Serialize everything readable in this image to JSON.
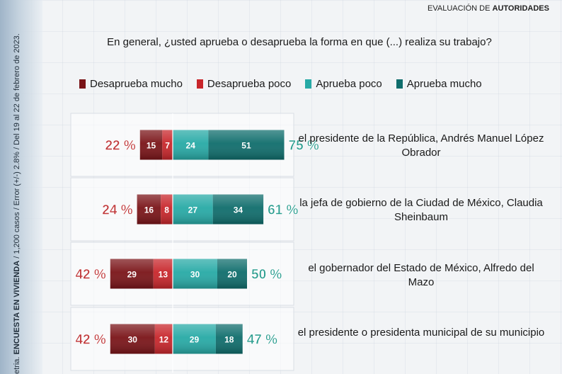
{
  "header": {
    "section_prefix": "EVALUACIÓN DE ",
    "section_strong": "AUTORIDADES"
  },
  "side_note": {
    "prefix": "etria. ",
    "strong": "ENCUESTA EN VIVIENDA",
    "rest": " / 1,200 casos / Error (+/-) 2.8% / Del 19 al 22 de febrero de 2023."
  },
  "question": "En general, ¿usted aprueba o desaprueba la forma en que (...) realiza su trabajo?",
  "colors": {
    "desaprueba_mucho": "#7a1418",
    "desaprueba_poco": "#c8262b",
    "aprueba_poco": "#27aaa6",
    "aprueba_mucho": "#0f6d6c",
    "disapprove_total": "#c0393b",
    "approve_total": "#2a9d8f"
  },
  "chart_data": {
    "type": "bar",
    "orientation": "horizontal-diverging",
    "series": [
      {
        "name": "Desaprueba mucho",
        "values": [
          15,
          16,
          29,
          30
        ]
      },
      {
        "name": "Desaprueba poco",
        "values": [
          7,
          8,
          13,
          12
        ]
      },
      {
        "name": "Aprueba poco",
        "values": [
          24,
          27,
          30,
          29
        ]
      },
      {
        "name": "Aprueba mucho",
        "values": [
          51,
          34,
          20,
          18
        ]
      }
    ],
    "categories": [
      "el presidente de la República, Andrés Manuel López Obrador",
      "la jefa de gobierno de la Ciudad de México, Claudia Sheinbaum",
      "el gobernador del Estado de México, Alfredo del Mazo",
      "el presidente o presidenta municipal de su municipio"
    ],
    "disapprove_totals": [
      "22 %",
      "24 %",
      "42 %",
      "42 %"
    ],
    "approve_totals": [
      "75 %",
      "61 %",
      "50 %",
      "47 %"
    ],
    "legend": [
      "Desaprueba mucho",
      "Desaprueba poco",
      "Aprueba poco",
      "Aprueba mucho"
    ]
  }
}
